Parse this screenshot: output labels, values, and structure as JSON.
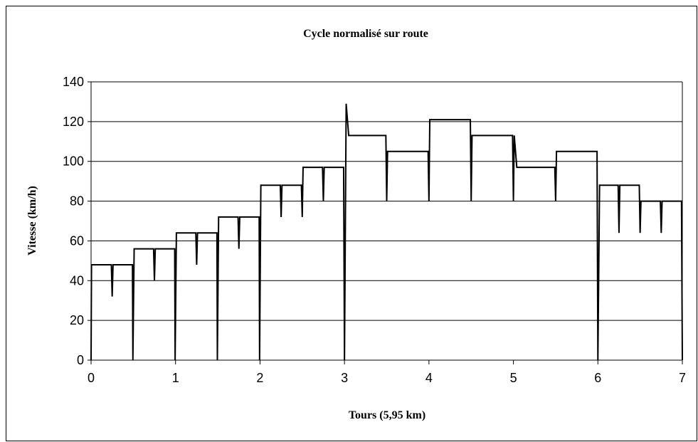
{
  "chart_data": {
    "type": "line",
    "title": "Cycle normalisé sur route",
    "x_label": "Tours (5,95 km)",
    "y_label": "Vitesse (km/h)",
    "xlim": [
      0,
      7
    ],
    "xticks": [
      0,
      1,
      2,
      3,
      4,
      5,
      6,
      7
    ],
    "ylim": [
      0,
      140
    ],
    "yticks": [
      0,
      20,
      40,
      60,
      80,
      100,
      120,
      140
    ],
    "grid": true,
    "series": [
      {
        "color": "#000000",
        "x": [
          0,
          0.005,
          0.24,
          0.25,
          0.26,
          0.49,
          0.495,
          0.51,
          0.74,
          0.75,
          0.76,
          0.99,
          0.995,
          1.01,
          1.24,
          1.25,
          1.26,
          1.49,
          1.495,
          1.51,
          1.74,
          1.75,
          1.76,
          1.99,
          1.995,
          2.01,
          2.24,
          2.25,
          2.26,
          2.49,
          2.5,
          2.51,
          2.74,
          2.75,
          2.76,
          2.99,
          3.0,
          3.02,
          3.05,
          3.49,
          3.5,
          3.51,
          3.99,
          4.0,
          4.01,
          4.49,
          4.5,
          4.51,
          4.99,
          5.0,
          5.01,
          5.04,
          5.49,
          5.5,
          5.51,
          5.99,
          6.0,
          6.02,
          6.24,
          6.25,
          6.26,
          6.49,
          6.5,
          6.51,
          6.74,
          6.75,
          6.76,
          6.99,
          7.0
        ],
        "values": [
          0,
          48,
          48,
          32,
          48,
          48,
          0,
          56,
          56,
          40,
          56,
          56,
          0,
          64,
          64,
          48,
          64,
          64,
          0,
          72,
          72,
          56,
          72,
          72,
          0,
          88,
          88,
          72,
          88,
          88,
          72,
          97,
          97,
          80,
          97,
          97,
          0,
          129,
          113,
          113,
          80,
          105,
          105,
          80,
          121,
          121,
          80,
          113,
          113,
          80,
          113,
          97,
          97,
          80,
          105,
          105,
          0,
          88,
          88,
          64,
          88,
          88,
          64,
          80,
          80,
          64,
          80,
          80,
          0
        ]
      }
    ]
  }
}
